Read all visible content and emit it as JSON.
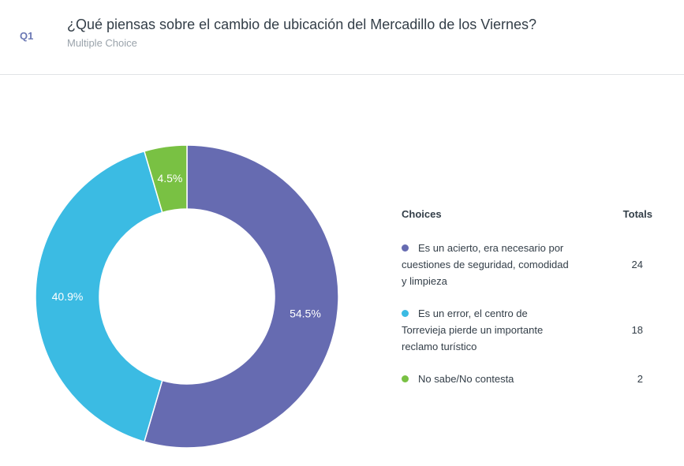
{
  "question": {
    "number": "Q1",
    "title": "¿Qué piensas sobre el cambio de ubicación del Mercadillo de los Viernes?",
    "type": "Multiple Choice"
  },
  "legend": {
    "choices_header": "Choices",
    "totals_header": "Totals"
  },
  "chart_data": {
    "type": "pie",
    "donut": true,
    "slices": [
      {
        "label": "Es un acierto, era necesario por cuestiones de seguridad, comodidad y limpieza",
        "value": 24,
        "percent_label": "54.5%",
        "color": "#666bb1"
      },
      {
        "label": "Es un error, el centro de Torrevieja pierde un importante reclamo turístico",
        "value": 18,
        "percent_label": "40.9%",
        "color": "#3bbbe3"
      },
      {
        "label": "No sabe/No contesta",
        "value": 2,
        "percent_label": "4.5%",
        "color": "#79c143"
      }
    ]
  }
}
